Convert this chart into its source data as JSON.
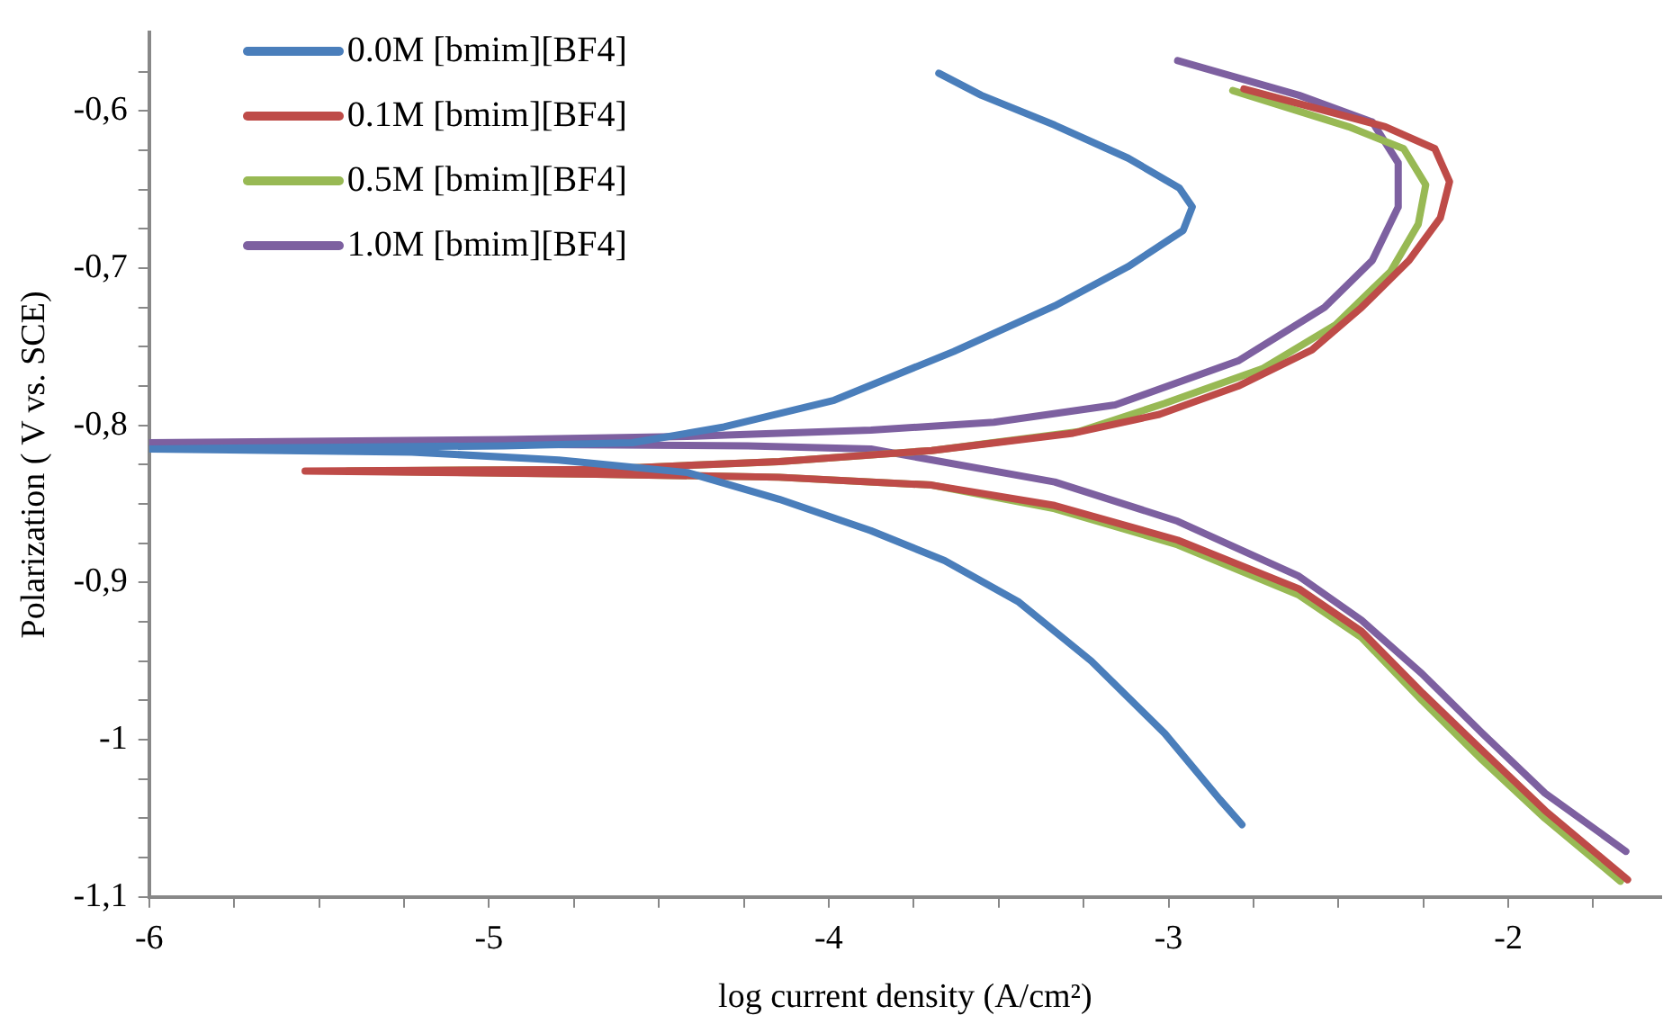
{
  "chart_data": {
    "type": "line",
    "xlabel": "log current density (A/cm²)",
    "ylabel": "Polarization ( V vs. SCE)",
    "xlim": [
      -6,
      -1.55
    ],
    "ylim": [
      -1.1,
      -0.55
    ],
    "xticks": [
      -6,
      {
        "value": -5.75,
        "label": null
      },
      {
        "value": -5.5,
        "label": null
      },
      {
        "value": -5.25,
        "label": null
      },
      -5,
      {
        "value": -4.75,
        "label": null
      },
      {
        "value": -4.5,
        "label": null
      },
      {
        "value": -4.25,
        "label": null
      },
      -4,
      {
        "value": -3.75,
        "label": null
      },
      {
        "value": -3.5,
        "label": null
      },
      {
        "value": -3.25,
        "label": null
      },
      -3,
      {
        "value": -2.75,
        "label": null
      },
      {
        "value": -2.5,
        "label": null
      },
      {
        "value": -2.25,
        "label": null
      },
      -2,
      {
        "value": -1.75,
        "label": null
      }
    ],
    "yticks": [
      {
        "value": -1.1,
        "label": "-1,1"
      },
      {
        "value": -1.075,
        "label": null
      },
      {
        "value": -1.05,
        "label": null
      },
      {
        "value": -1.025,
        "label": null
      },
      -1,
      {
        "value": -0.975,
        "label": null
      },
      {
        "value": -0.95,
        "label": null
      },
      {
        "value": -0.925,
        "label": null
      },
      {
        "value": -0.9,
        "label": "-0,9"
      },
      {
        "value": -0.875,
        "label": null
      },
      {
        "value": -0.85,
        "label": null
      },
      {
        "value": -0.825,
        "label": null
      },
      {
        "value": -0.8,
        "label": "-0,8"
      },
      {
        "value": -0.775,
        "label": null
      },
      {
        "value": -0.75,
        "label": null
      },
      {
        "value": -0.725,
        "label": null
      },
      {
        "value": -0.7,
        "label": "-0,7"
      },
      {
        "value": -0.675,
        "label": null
      },
      {
        "value": -0.65,
        "label": null
      },
      {
        "value": -0.625,
        "label": null
      },
      {
        "value": -0.6,
        "label": "-0,6"
      },
      {
        "value": -0.575,
        "label": null
      }
    ],
    "grid": false,
    "legend": "top left",
    "series": [
      {
        "name": "0.0M [bmim][BF4]",
        "color": "#4a7ebb",
        "x": [
          -3.676,
          -3.551,
          -3.335,
          -3.119,
          -2.968,
          -2.93,
          -2.957,
          -3.119,
          -3.335,
          -3.632,
          -3.984,
          -4.308,
          -4.578,
          -4.957,
          -5.497,
          -6,
          -5.227,
          -4.795,
          -4.416,
          -4.146,
          -3.876,
          -3.659,
          -3.443,
          -3.227,
          -3.011,
          -2.849,
          -2.784
        ],
        "values": [
          -0.576,
          -0.59,
          -0.609,
          -0.63,
          -0.649,
          -0.661,
          -0.676,
          -0.699,
          -0.724,
          -0.753,
          -0.784,
          -0.801,
          -0.811,
          -0.813,
          -0.814,
          -0.815,
          -0.817,
          -0.822,
          -0.83,
          -0.847,
          -0.867,
          -0.886,
          -0.912,
          -0.95,
          -0.996,
          -1.038,
          -1.054
        ]
      },
      {
        "name": "0.1M [bmim][BF4]",
        "color": "#be4b48",
        "x": [
          -2.778,
          -2.362,
          -2.216,
          -2.173,
          -2.2,
          -2.292,
          -2.432,
          -2.578,
          -2.795,
          -3.027,
          -3.281,
          -3.697,
          -4.146,
          -4.686,
          -5.541,
          -4.686,
          -4.146,
          -3.697,
          -3.335,
          -2.973,
          -2.616,
          -2.432,
          -2.254,
          -2.076,
          -1.892,
          -1.649
        ],
        "values": [
          -0.586,
          -0.61,
          -0.624,
          -0.645,
          -0.668,
          -0.695,
          -0.725,
          -0.752,
          -0.775,
          -0.793,
          -0.805,
          -0.816,
          -0.823,
          -0.828,
          -0.829,
          -0.831,
          -0.833,
          -0.838,
          -0.851,
          -0.873,
          -0.904,
          -0.931,
          -0.97,
          -1.007,
          -1.045,
          -1.089
        ]
      },
      {
        "name": "0.5M [bmim][BF4]",
        "color": "#98b954",
        "x": [
          -2.811,
          -2.47,
          -2.308,
          -2.243,
          -2.265,
          -2.346,
          -2.508,
          -2.724,
          -3.011,
          -3.265,
          -3.697,
          -4.146,
          -4.686,
          -5.416,
          -4.686,
          -4.146,
          -3.697,
          -3.335,
          -2.973,
          -2.616,
          -2.432,
          -2.254,
          -2.076,
          -1.892,
          -1.67
        ],
        "values": [
          -0.587,
          -0.61,
          -0.624,
          -0.647,
          -0.672,
          -0.702,
          -0.736,
          -0.764,
          -0.786,
          -0.804,
          -0.816,
          -0.823,
          -0.828,
          -0.829,
          -0.831,
          -0.833,
          -0.838,
          -0.853,
          -0.876,
          -0.908,
          -0.935,
          -0.975,
          -1.013,
          -1.05,
          -1.09
        ]
      },
      {
        "name": "1.0M [bmim][BF4]",
        "color": "#7d60a0",
        "x": [
          -2.973,
          -2.616,
          -2.4,
          -2.324,
          -2.324,
          -2.4,
          -2.541,
          -2.795,
          -3.157,
          -3.514,
          -3.876,
          -4.416,
          -4.957,
          -6,
          -4.957,
          -4.238,
          -3.876,
          -3.335,
          -2.973,
          -2.616,
          -2.432,
          -2.254,
          -2.076,
          -1.892,
          -1.654
        ],
        "values": [
          -0.568,
          -0.59,
          -0.607,
          -0.633,
          -0.661,
          -0.695,
          -0.725,
          -0.759,
          -0.787,
          -0.798,
          -0.803,
          -0.807,
          -0.809,
          -0.811,
          -0.812,
          -0.813,
          -0.815,
          -0.836,
          -0.861,
          -0.896,
          -0.924,
          -0.958,
          -0.996,
          -1.034,
          -1.071
        ]
      }
    ]
  }
}
